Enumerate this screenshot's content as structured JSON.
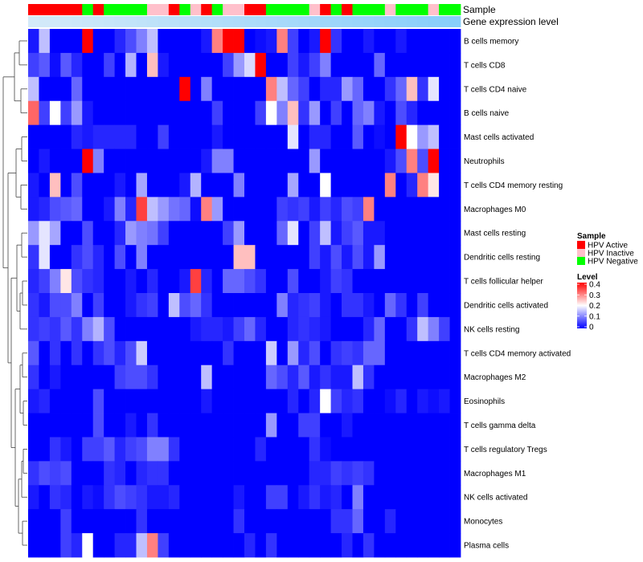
{
  "chart_data": {
    "type": "heatmap",
    "annotation_tracks": [
      {
        "name": "Sample",
        "values": [
          "HPV Active",
          "HPV Active",
          "HPV Active",
          "HPV Active",
          "HPV Active",
          "HPV Negative",
          "HPV Active",
          "HPV Negative",
          "HPV Negative",
          "HPV Negative",
          "HPV Negative",
          "HPV Inactive",
          "HPV Inactive",
          "HPV Active",
          "HPV Negative",
          "HPV Inactive",
          "HPV Active",
          "HPV Negative",
          "HPV Inactive",
          "HPV Inactive",
          "HPV Active",
          "HPV Active",
          "HPV Negative",
          "HPV Negative",
          "HPV Negative",
          "HPV Negative",
          "HPV Inactive",
          "HPV Active",
          "HPV Negative",
          "HPV Active",
          "HPV Negative",
          "HPV Negative",
          "HPV Negative",
          "HPV Inactive",
          "HPV Negative",
          "HPV Negative",
          "HPV Negative",
          "HPV Inactive",
          "HPV Negative",
          "HPV Negative"
        ]
      },
      {
        "name": "Gene expression level",
        "values": [
          0.0,
          0.026,
          0.051,
          0.077,
          0.103,
          0.128,
          0.154,
          0.179,
          0.205,
          0.231,
          0.256,
          0.282,
          0.308,
          0.333,
          0.359,
          0.385,
          0.41,
          0.436,
          0.462,
          0.487,
          0.513,
          0.538,
          0.564,
          0.59,
          0.615,
          0.641,
          0.667,
          0.692,
          0.718,
          0.744,
          0.769,
          0.795,
          0.821,
          0.846,
          0.872,
          0.897,
          0.923,
          0.949,
          0.974,
          1.0
        ]
      }
    ],
    "row_labels": [
      "B cells memory",
      "T cells CD8",
      "T cells CD4 naive",
      "B cells naive",
      "Mast cells activated",
      "Neutrophils",
      "T cells CD4 memory resting",
      "Macrophages M0",
      "Mast cells resting",
      "Dendritic cells resting",
      "T cells follicular helper",
      "Dendritic cells activated",
      "NK cells resting",
      "T cells CD4 memory activated",
      "Macrophages M2",
      "Eosinophils",
      "T cells gamma delta",
      "T cells regulatory  Tregs",
      "Macrophages M1",
      "NK cells activated",
      "Monocytes",
      "Plasma cells"
    ],
    "values": [
      [
        0.02,
        0.15,
        0,
        0,
        0,
        0.4,
        0,
        0,
        0.03,
        0.06,
        0.1,
        0.15,
        0,
        0,
        0,
        0,
        0.02,
        0.3,
        0.4,
        0.4,
        0,
        0.01,
        0.02,
        0.3,
        0.05,
        0,
        0.02,
        0.4,
        0.04,
        0,
        0,
        0.02,
        0,
        0,
        0.02,
        0,
        0,
        0,
        0,
        0
      ],
      [
        0.05,
        0.07,
        0.01,
        0.07,
        0.03,
        0,
        0,
        0.05,
        0,
        0.14,
        0,
        0.25,
        0.02,
        0,
        0,
        0,
        0,
        0,
        0.05,
        0.12,
        0.17,
        0.4,
        0,
        0,
        0.05,
        0.02,
        0.05,
        0.1,
        0,
        0,
        0,
        0,
        0.08,
        0,
        0,
        0,
        0,
        0,
        0,
        0
      ],
      [
        0.15,
        0,
        0,
        0,
        0.08,
        0,
        0,
        0,
        0,
        0,
        0,
        0,
        0,
        0,
        0.4,
        0,
        0.1,
        0,
        0,
        0,
        0,
        0,
        0.3,
        0.15,
        0.08,
        0.05,
        0,
        0.03,
        0.03,
        0.12,
        0.08,
        0,
        0,
        0.04,
        0.08,
        0.25,
        0.04,
        0.18,
        0,
        0
      ],
      [
        0.32,
        0.05,
        0.2,
        0.05,
        0.12,
        0.02,
        0,
        0,
        0,
        0,
        0,
        0,
        0,
        0,
        0,
        0,
        0,
        0.05,
        0,
        0,
        0,
        0.05,
        0.2,
        0.1,
        0.25,
        0.04,
        0.12,
        0,
        0.05,
        0,
        0.08,
        0.1,
        0.02,
        0,
        0.06,
        0.03,
        0,
        0,
        0,
        0
      ],
      [
        0,
        0,
        0,
        0,
        0.03,
        0.02,
        0.03,
        0.03,
        0.03,
        0.03,
        0,
        0,
        0.05,
        0,
        0,
        0,
        0,
        0.02,
        0,
        0,
        0,
        0,
        0,
        0,
        0.18,
        0,
        0.03,
        0.03,
        0,
        0,
        0.07,
        0,
        0.01,
        0,
        0.4,
        0.2,
        0.12,
        0.15,
        0,
        0
      ],
      [
        0,
        0.02,
        0,
        0,
        0,
        0.4,
        0.1,
        0,
        0,
        0,
        0,
        0,
        0,
        0,
        0,
        0,
        0.02,
        0.1,
        0.1,
        0,
        0,
        0,
        0,
        0,
        0,
        0,
        0.12,
        0,
        0,
        0,
        0,
        0,
        0,
        0.02,
        0.06,
        0.3,
        0.06,
        0.4,
        0,
        0
      ],
      [
        0.02,
        0,
        0.25,
        0,
        0.06,
        0,
        0,
        0,
        0.02,
        0,
        0.13,
        0,
        0,
        0,
        0.02,
        0.14,
        0,
        0,
        0,
        0.1,
        0,
        0,
        0,
        0,
        0.13,
        0,
        0,
        0.2,
        0,
        0,
        0,
        0,
        0,
        0.3,
        0,
        0.03,
        0.3,
        0.22,
        0,
        0
      ],
      [
        0.02,
        0.03,
        0.06,
        0.07,
        0.08,
        0,
        0,
        0.02,
        0.1,
        0.03,
        0.35,
        0.15,
        0.12,
        0.09,
        0.08,
        0.01,
        0.3,
        0.12,
        0,
        0,
        0,
        0,
        0,
        0.05,
        0.04,
        0.05,
        0.02,
        0.05,
        0.03,
        0.06,
        0.05,
        0.3,
        0,
        0,
        0,
        0,
        0,
        0,
        0,
        0
      ],
      [
        0.12,
        0.18,
        0.13,
        0,
        0,
        0.06,
        0,
        0,
        0.03,
        0.12,
        0.1,
        0.09,
        0.05,
        0,
        0,
        0,
        0,
        0,
        0.05,
        0.12,
        0,
        0,
        0,
        0.08,
        0.18,
        0,
        0.05,
        0.15,
        0.02,
        0.05,
        0.07,
        0.02,
        0.02,
        0,
        0,
        0,
        0,
        0,
        0,
        0
      ],
      [
        0.04,
        0.18,
        0,
        0,
        0.04,
        0.06,
        0.03,
        0,
        0.06,
        0,
        0.1,
        0,
        0,
        0,
        0,
        0,
        0,
        0,
        0,
        0.25,
        0.25,
        0,
        0,
        0,
        0,
        0,
        0.05,
        0.02,
        0.06,
        0.02,
        0.06,
        0.02,
        0.12,
        0,
        0,
        0,
        0,
        0,
        0,
        0
      ],
      [
        0.03,
        0.05,
        0.1,
        0.22,
        0.06,
        0.04,
        0.03,
        0,
        0,
        0.02,
        0,
        0.03,
        0,
        0,
        0.02,
        0.35,
        0.03,
        0,
        0.08,
        0.08,
        0.06,
        0.04,
        0,
        0,
        0.06,
        0,
        0,
        0.02,
        0.05,
        0.04,
        0,
        0,
        0,
        0,
        0,
        0,
        0,
        0,
        0,
        0
      ],
      [
        0.04,
        0.02,
        0.06,
        0.06,
        0.1,
        0,
        0.05,
        0,
        0,
        0.02,
        0.04,
        0.05,
        0,
        0.15,
        0.06,
        0.08,
        0.04,
        0,
        0,
        0,
        0,
        0,
        0,
        0.1,
        0.03,
        0.04,
        0.05,
        0.02,
        0,
        0.04,
        0.04,
        0.02,
        0,
        0.08,
        0.04,
        0,
        0.05,
        0,
        0,
        0
      ],
      [
        0.04,
        0.05,
        0.04,
        0.07,
        0.04,
        0.1,
        0.14,
        0.06,
        0,
        0,
        0,
        0,
        0,
        0,
        0,
        0.02,
        0.03,
        0.03,
        0.02,
        0.05,
        0.08,
        0.03,
        0,
        0,
        0.03,
        0.04,
        0.03,
        0.02,
        0,
        0,
        0,
        0.03,
        0.08,
        0,
        0,
        0.04,
        0.15,
        0.1,
        0.05,
        0
      ],
      [
        0.07,
        0,
        0.04,
        0,
        0.04,
        0,
        0.04,
        0.06,
        0.03,
        0.06,
        0.16,
        0,
        0,
        0,
        0,
        0,
        0,
        0,
        0.04,
        0,
        0,
        0,
        0.16,
        0,
        0.12,
        0.03,
        0.06,
        0,
        0.04,
        0.05,
        0.04,
        0.08,
        0.08,
        0,
        0,
        0,
        0,
        0,
        0,
        0
      ],
      [
        0.04,
        0,
        0.02,
        0,
        0,
        0,
        0,
        0,
        0.05,
        0.06,
        0.06,
        0.04,
        0,
        0,
        0,
        0,
        0.15,
        0,
        0,
        0,
        0,
        0,
        0.08,
        0.06,
        0.03,
        0.07,
        0.02,
        0.04,
        0.02,
        0.02,
        0.15,
        0.04,
        0,
        0,
        0,
        0,
        0,
        0,
        0,
        0
      ],
      [
        0.02,
        0.03,
        0,
        0,
        0,
        0,
        0.06,
        0,
        0,
        0,
        0,
        0,
        0,
        0,
        0,
        0,
        0.02,
        0,
        0,
        0,
        0,
        0,
        0,
        0,
        0.03,
        0,
        0.03,
        0.2,
        0.05,
        0.03,
        0.04,
        0,
        0,
        0.01,
        0.03,
        0,
        0.02,
        0.01,
        0.02,
        0
      ],
      [
        0,
        0,
        0,
        0,
        0,
        0,
        0.06,
        0,
        0,
        0.02,
        0,
        0.04,
        0,
        0,
        0,
        0,
        0,
        0,
        0,
        0,
        0,
        0,
        0.12,
        0,
        0,
        0.05,
        0.05,
        0,
        0,
        0.02,
        0,
        0,
        0,
        0,
        0,
        0,
        0,
        0,
        0,
        0
      ],
      [
        0,
        0,
        0.04,
        0.02,
        0,
        0.05,
        0.05,
        0.07,
        0.03,
        0.05,
        0.06,
        0.1,
        0.1,
        0.04,
        0,
        0,
        0,
        0,
        0,
        0,
        0,
        0.03,
        0,
        0,
        0,
        0,
        0.04,
        0.01,
        0,
        0,
        0,
        0,
        0,
        0,
        0,
        0,
        0,
        0,
        0,
        0
      ],
      [
        0.04,
        0.06,
        0.05,
        0.06,
        0,
        0,
        0,
        0.04,
        0.03,
        0,
        0.03,
        0.04,
        0.04,
        0,
        0,
        0,
        0,
        0,
        0,
        0,
        0,
        0,
        0,
        0,
        0,
        0,
        0.03,
        0.03,
        0.05,
        0.04,
        0.05,
        0.04,
        0,
        0,
        0,
        0,
        0,
        0,
        0,
        0
      ],
      [
        0.02,
        0,
        0.04,
        0.03,
        0,
        0.02,
        0.01,
        0.04,
        0.06,
        0.05,
        0.04,
        0.02,
        0.02,
        0.03,
        0,
        0,
        0,
        0,
        0,
        0.02,
        0,
        0,
        0.05,
        0.05,
        0,
        0.02,
        0.04,
        0.02,
        0.03,
        0,
        0.1,
        0,
        0,
        0,
        0,
        0,
        0,
        0,
        0,
        0
      ],
      [
        0,
        0,
        0,
        0.05,
        0,
        0,
        0,
        0,
        0,
        0,
        0.04,
        0,
        0,
        0,
        0,
        0,
        0,
        0,
        0,
        0.04,
        0,
        0,
        0,
        0,
        0,
        0,
        0,
        0,
        0.04,
        0.04,
        0.08,
        0,
        0,
        0.03,
        0,
        0,
        0,
        0,
        0,
        0
      ],
      [
        0,
        0,
        0,
        0.05,
        0.03,
        0.2,
        0,
        0,
        0.03,
        0.03,
        0.15,
        0.3,
        0.05,
        0,
        0,
        0,
        0,
        0,
        0,
        0,
        0.03,
        0,
        0.04,
        0,
        0,
        0,
        0,
        0,
        0,
        0.03,
        0,
        0.04,
        0,
        0,
        0,
        0,
        0,
        0,
        0,
        0
      ]
    ],
    "color_scale": {
      "low": "#0000FF",
      "mid": "#FFFFFF",
      "high": "#FF0000",
      "limits": [
        0,
        0.4
      ]
    },
    "legend": {
      "sample_title": "Sample",
      "sample_entries": [
        {
          "label": "HPV Active",
          "color": "#FF0000"
        },
        {
          "label": "HPV Inactive",
          "color": "#FFC0CB"
        },
        {
          "label": "HPV Negative",
          "color": "#00FF00"
        }
      ],
      "level_title": "Level",
      "level_ticks": [
        "0.4",
        "0.3",
        "0.2",
        "0.1",
        "0"
      ]
    },
    "expression_colors": {
      "low": "#D4EAF9",
      "high": "#87CEFA"
    },
    "placement": "legend right, row dendrogram left"
  }
}
